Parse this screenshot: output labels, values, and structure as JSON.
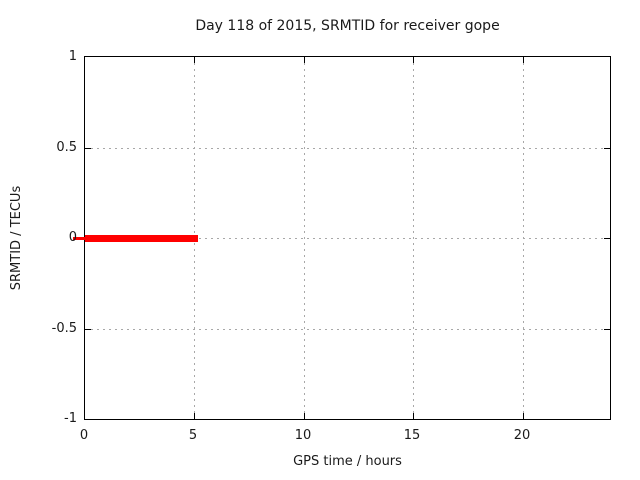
{
  "figure": {
    "title": "Day 118 of 2015, SRMTID for receiver gope",
    "xlabel": "GPS time / hours",
    "ylabel": "SRMTID / TECUs"
  },
  "chart_data": {
    "type": "line",
    "title": "Day 118 of 2015, SRMTID for receiver gope",
    "xlabel": "GPS time / hours",
    "ylabel": "SRMTID / TECUs",
    "xlim": [
      0,
      24
    ],
    "ylim": [
      -1,
      1
    ],
    "xticks": [
      {
        "label": "0",
        "value": 0
      },
      {
        "label": "5",
        "value": 5
      },
      {
        "label": "10",
        "value": 10
      },
      {
        "label": "15",
        "value": 15
      },
      {
        "label": "20",
        "value": 20
      }
    ],
    "yticks": [
      {
        "label": "1",
        "value": 1
      },
      {
        "label": "0.5",
        "value": 0.5
      },
      {
        "label": "0",
        "value": 0
      },
      {
        "label": "-0.5",
        "value": -0.5
      },
      {
        "label": "-1",
        "value": -1
      }
    ],
    "grid": true,
    "grid_style": "dotted",
    "legend": null,
    "series": [
      {
        "name": "SRMTID",
        "color": "#ff0000",
        "style": "thick-line",
        "thickness_px": 7,
        "x": [
          0,
          5.15
        ],
        "y": [
          0,
          0
        ]
      }
    ]
  },
  "colors": {
    "background": "#ffffff",
    "axis": "#000000",
    "grid": "#a8a8a8",
    "text": "#1a1a1a",
    "series_red": "#ff0000"
  }
}
